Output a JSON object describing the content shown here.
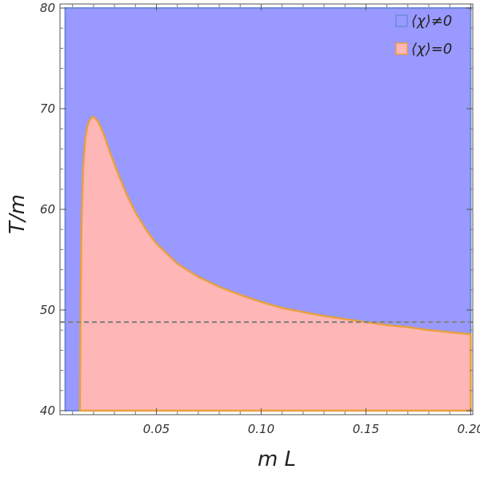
{
  "chart_data": {
    "type": "area",
    "xlabel": "m L",
    "ylabel": "T/m",
    "xlim": [
      0.004,
      0.201
    ],
    "ylim": [
      39.6,
      80.4
    ],
    "x_ticks": [
      0.05,
      0.1,
      0.15,
      0.2
    ],
    "x_tick_labels": [
      "0.05",
      "0.10",
      "0.15",
      "0.20"
    ],
    "y_ticks": [
      40,
      50,
      60,
      70,
      80
    ],
    "y_tick_labels": [
      "40",
      "50",
      "60",
      "70",
      "80"
    ],
    "legend_position": "top-right",
    "colors": {
      "broken_fill": "#9999ff",
      "broken_stroke": "#6e89d8",
      "symmetric_fill": "#ffb6b6",
      "symmetric_stroke": "#e8a040",
      "dashed_line": "#808080"
    },
    "series": [
      {
        "name": "⟨χ⟩≠0",
        "region": {
          "x_range": [
            0.0065,
            0.2
          ],
          "y_range": [
            40,
            80
          ]
        }
      },
      {
        "name": "⟨χ⟩=0",
        "boundary_x": [
          0.0135,
          0.0138,
          0.0142,
          0.015,
          0.016,
          0.017,
          0.018,
          0.019,
          0.02,
          0.021,
          0.0225,
          0.025,
          0.028,
          0.032,
          0.036,
          0.04,
          0.045,
          0.05,
          0.06,
          0.07,
          0.08,
          0.09,
          0.1,
          0.11,
          0.12,
          0.13,
          0.14,
          0.15,
          0.16,
          0.17,
          0.18,
          0.19,
          0.2
        ],
        "boundary_y": [
          40.0,
          50.0,
          58.0,
          64.0,
          66.9,
          68.2,
          68.8,
          69.1,
          69.2,
          69.0,
          68.6,
          67.4,
          65.6,
          63.4,
          61.4,
          59.7,
          58.0,
          56.6,
          54.6,
          53.3,
          52.3,
          51.5,
          50.8,
          50.2,
          49.8,
          49.4,
          49.1,
          48.8,
          48.5,
          48.3,
          48.0,
          47.8,
          47.6
        ]
      }
    ],
    "reference_line": {
      "y": 48.8,
      "style": "dashed"
    }
  }
}
